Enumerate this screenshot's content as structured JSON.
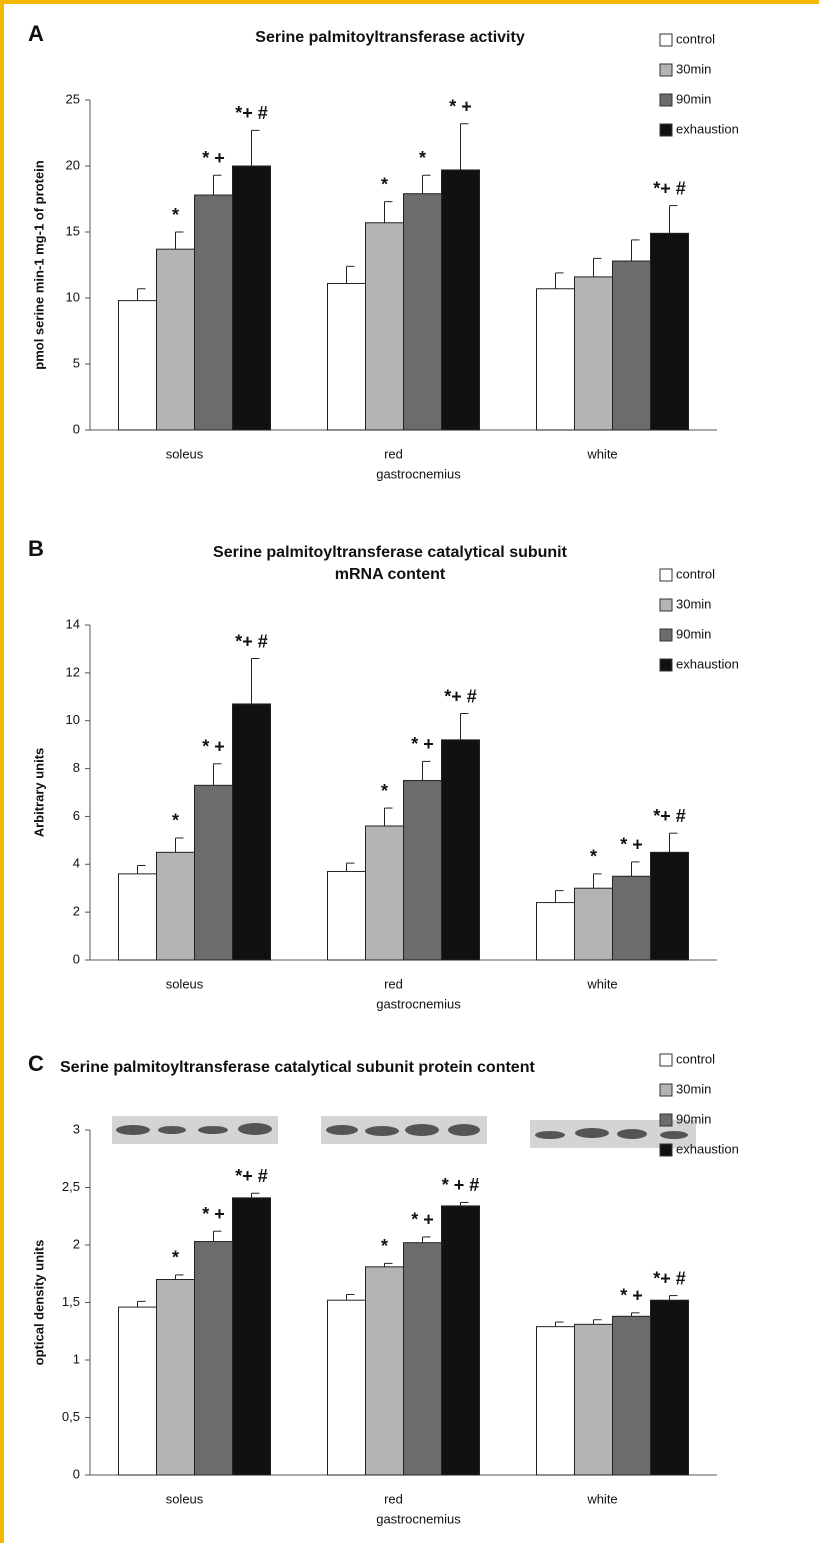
{
  "chart_data": [
    {
      "type": "bar",
      "panel": "A",
      "title": [
        "Serine palmitoyltransferase activity"
      ],
      "y_label": "pmol serine min-1 mg-1 of protein",
      "x_label": "gastrocnemius",
      "categories": [
        "soleus",
        "red",
        "white"
      ],
      "ylim": [
        0,
        25
      ],
      "yticks": [
        0,
        5,
        10,
        15,
        20,
        25
      ],
      "series": [
        {
          "name": "control",
          "color": "#ffffff",
          "values": [
            9.8,
            11.1,
            10.7
          ],
          "errors": [
            0.9,
            1.3,
            1.2
          ],
          "significance": [
            null,
            null,
            null
          ]
        },
        {
          "name": "30min",
          "color": "#b4b4b4",
          "values": [
            13.7,
            15.7,
            11.6
          ],
          "errors": [
            1.3,
            1.6,
            1.4
          ],
          "significance": [
            "*",
            "*",
            null
          ]
        },
        {
          "name": "90min",
          "color": "#6c6c6c",
          "values": [
            17.8,
            17.9,
            12.8
          ],
          "errors": [
            1.5,
            1.4,
            1.6
          ],
          "significance": [
            "* +",
            "*",
            null
          ]
        },
        {
          "name": "exhaustion",
          "color": "#111111",
          "values": [
            20.0,
            19.7,
            14.9
          ],
          "errors": [
            2.7,
            3.5,
            2.1
          ],
          "significance": [
            "*+ #",
            "* +",
            "*+ #"
          ]
        }
      ]
    },
    {
      "type": "bar",
      "panel": "B",
      "title": [
        "Serine palmitoyltransferase catalytical subunit",
        "mRNA content"
      ],
      "y_label": "Arbitrary units",
      "x_label": "gastrocnemius",
      "categories": [
        "soleus",
        "red",
        "white"
      ],
      "ylim": [
        0,
        14
      ],
      "yticks": [
        0,
        2,
        4,
        6,
        8,
        10,
        12,
        14
      ],
      "series": [
        {
          "name": "control",
          "color": "#ffffff",
          "values": [
            3.6,
            3.7,
            2.4
          ],
          "errors": [
            0.35,
            0.35,
            0.5
          ],
          "significance": [
            null,
            null,
            null
          ]
        },
        {
          "name": "30min",
          "color": "#b4b4b4",
          "values": [
            4.5,
            5.6,
            3.0
          ],
          "errors": [
            0.6,
            0.75,
            0.6
          ],
          "significance": [
            "*",
            "*",
            "*"
          ]
        },
        {
          "name": "90min",
          "color": "#6c6c6c",
          "values": [
            7.3,
            7.5,
            3.5
          ],
          "errors": [
            0.9,
            0.8,
            0.6
          ],
          "significance": [
            "* +",
            "* +",
            "* +"
          ]
        },
        {
          "name": "exhaustion",
          "color": "#111111",
          "values": [
            10.7,
            9.2,
            4.5
          ],
          "errors": [
            1.9,
            1.1,
            0.8
          ],
          "significance": [
            "*+ #",
            "*+ #",
            "*+ #"
          ]
        }
      ]
    },
    {
      "type": "bar",
      "panel": "C",
      "title": [
        "Serine palmitoyltransferase catalytical subunit protein content"
      ],
      "y_label": "optical density units",
      "x_label": "gastrocnemius",
      "categories": [
        "soleus",
        "red",
        "white"
      ],
      "ylim": [
        0,
        3
      ],
      "yticks": [
        0,
        {
          "value": 0.5,
          "label": "0,5"
        },
        1,
        {
          "value": 1.5,
          "label": "1,5"
        },
        2,
        {
          "value": 2.5,
          "label": "2,5"
        },
        3
      ],
      "series": [
        {
          "name": "control",
          "color": "#ffffff",
          "values": [
            1.46,
            1.52,
            1.29
          ],
          "errors": [
            0.05,
            0.05,
            0.04
          ],
          "significance": [
            null,
            null,
            null
          ]
        },
        {
          "name": "30min",
          "color": "#b4b4b4",
          "values": [
            1.7,
            1.81,
            1.31
          ],
          "errors": [
            0.04,
            0.03,
            0.04
          ],
          "significance": [
            "*",
            "*",
            null
          ]
        },
        {
          "name": "90min",
          "color": "#6c6c6c",
          "values": [
            2.03,
            2.02,
            1.38
          ],
          "errors": [
            0.09,
            0.05,
            0.03
          ],
          "significance": [
            "* +",
            "* +",
            "* +"
          ]
        },
        {
          "name": "exhaustion",
          "color": "#111111",
          "values": [
            2.41,
            2.34,
            1.52
          ],
          "errors": [
            0.04,
            0.03,
            0.04
          ],
          "significance": [
            "*+ #",
            "* + #",
            "*+ #"
          ]
        }
      ]
    }
  ]
}
